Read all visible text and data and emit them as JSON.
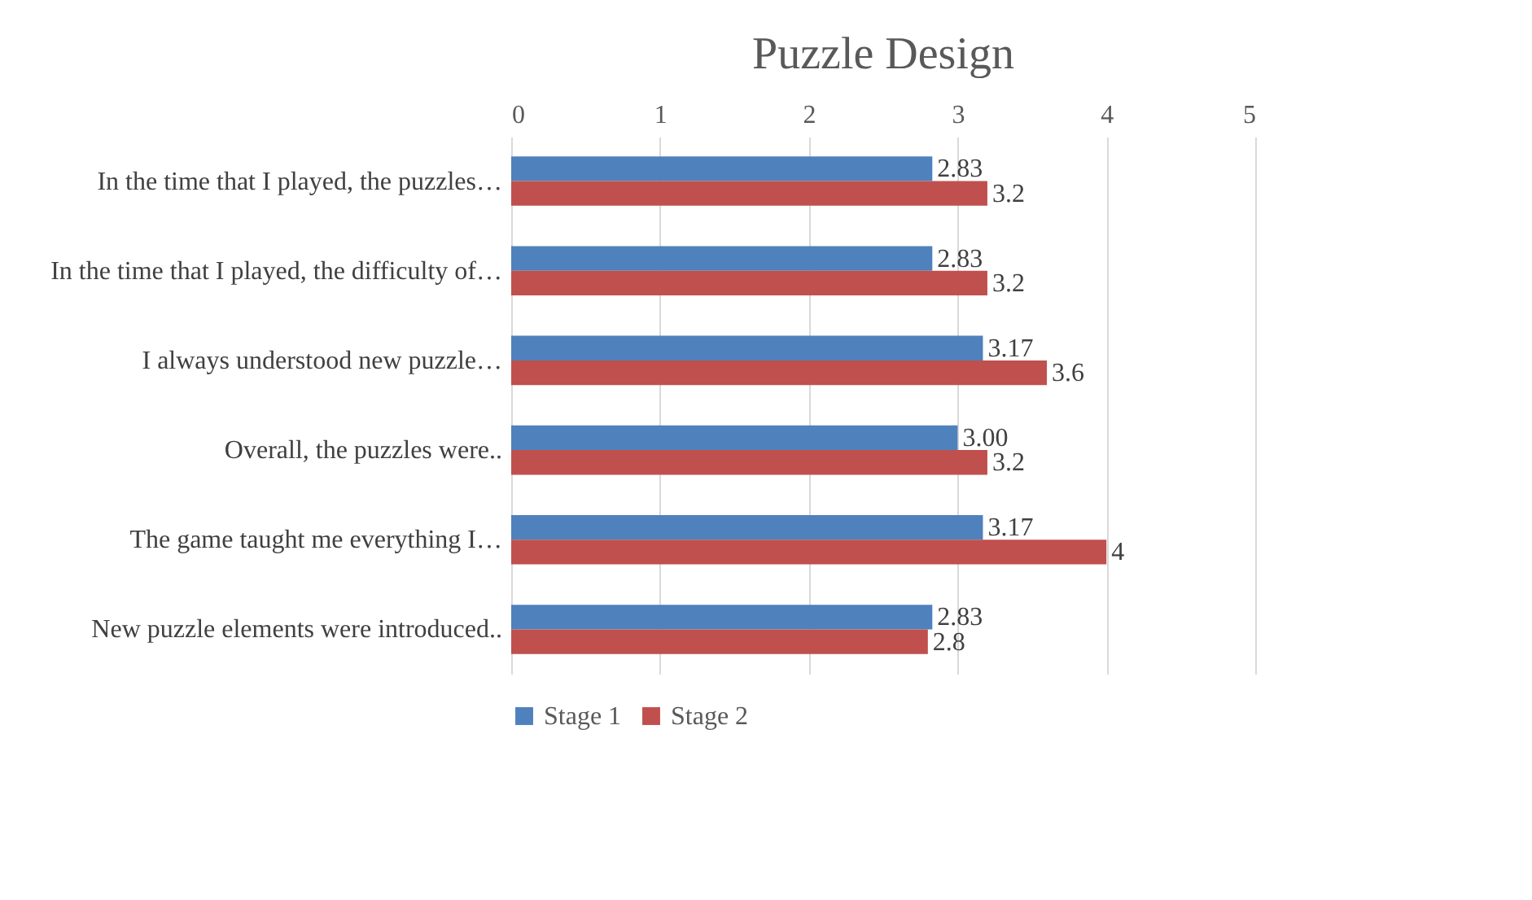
{
  "chart_data": {
    "type": "bar",
    "orientation": "horizontal",
    "title": "Puzzle Design",
    "categories": [
      "In the time that I played, the puzzles…",
      "In the time that I played, the difficulty of…",
      "I always understood new puzzle…",
      "Overall, the puzzles were..",
      "The game taught me everything I…",
      "New puzzle elements were introduced.."
    ],
    "series": [
      {
        "name": "Stage 1",
        "color": "#4f81bd",
        "values": [
          2.83,
          2.83,
          3.17,
          3.0,
          3.17,
          2.83
        ],
        "value_labels": [
          "2.83",
          "2.83",
          "3.17",
          "3.00",
          "3.17",
          "2.83"
        ]
      },
      {
        "name": "Stage 2",
        "color": "#c0504d",
        "values": [
          3.2,
          3.2,
          3.6,
          3.2,
          4,
          2.8
        ],
        "value_labels": [
          "3.2",
          "3.2",
          "3.6",
          "3.2",
          "4",
          "2.8"
        ]
      }
    ],
    "xlim": [
      0,
      5
    ],
    "xticks": [
      0,
      1,
      2,
      3,
      4,
      5
    ],
    "grid": "x",
    "legend": "bottom"
  }
}
